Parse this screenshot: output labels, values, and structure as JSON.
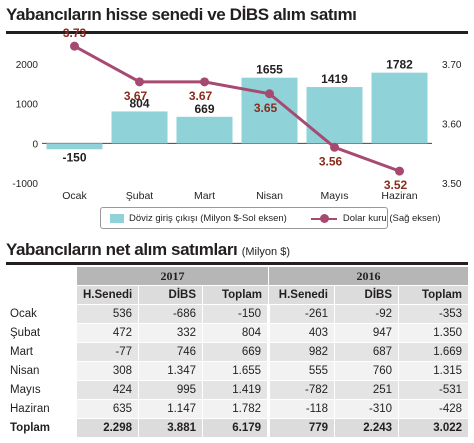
{
  "title": "Yabancıların hisse senedi ve DİBS alım satımı",
  "chart_data": {
    "type": "bar+line",
    "categories": [
      "Ocak",
      "Şubat",
      "Mart",
      "Nisan",
      "Mayıs",
      "Haziran"
    ],
    "series": [
      {
        "name": "Döviz giriş çıkışı (Milyon $-Sol eksen)",
        "type": "bar",
        "axis": "left",
        "values": [
          -150,
          804,
          669,
          1655,
          1419,
          1782
        ],
        "labels": [
          "-150",
          "804",
          "669",
          "1655",
          "1419",
          "1782"
        ],
        "color": "#8fd3d9"
      },
      {
        "name": "Dolar kuru (Sağ eksen)",
        "type": "line",
        "axis": "right",
        "values": [
          3.73,
          3.67,
          3.67,
          3.65,
          3.56,
          3.52
        ],
        "labels": [
          "3.73",
          "3.67",
          "3.67",
          "3.65",
          "3.56",
          "3.52"
        ],
        "color": "#a74a72"
      }
    ],
    "y_left": {
      "min": -1000,
      "max": 2000,
      "ticks": [
        2000,
        1000,
        0,
        -1000
      ],
      "tick_labels": [
        "2000",
        "1000",
        "0",
        "-1000"
      ]
    },
    "y_right": {
      "min": 3.5,
      "max": 3.7,
      "ticks": [
        3.7,
        3.6,
        3.5
      ],
      "tick_labels": [
        "3.70",
        "3.60",
        "3.50"
      ]
    },
    "grid": false,
    "legend": "bottom"
  },
  "table": {
    "title": "Yabancıların net alım satımları",
    "unit": "(Milyon $)",
    "years": [
      "2017",
      "2016"
    ],
    "columns": [
      "H.Senedi",
      "DİBS",
      "Toplam",
      "H.Senedi",
      "DİBS",
      "Toplam"
    ],
    "rows": [
      {
        "label": "Ocak",
        "values": [
          "536",
          "-686",
          "-150",
          "-261",
          "-92",
          "-353"
        ]
      },
      {
        "label": "Şubat",
        "values": [
          "472",
          "332",
          "804",
          "403",
          "947",
          "1.350"
        ]
      },
      {
        "label": "Mart",
        "values": [
          "-77",
          "746",
          "669",
          "982",
          "687",
          "1.669"
        ]
      },
      {
        "label": "Nisan",
        "values": [
          "308",
          "1.347",
          "1.655",
          "555",
          "760",
          "1.315"
        ]
      },
      {
        "label": "Mayıs",
        "values": [
          "424",
          "995",
          "1.419",
          "-782",
          "251",
          "-531"
        ]
      },
      {
        "label": "Haziran",
        "values": [
          "635",
          "1.147",
          "1.782",
          "-118",
          "-310",
          "-428"
        ]
      },
      {
        "label": "Toplam",
        "values": [
          "2.298",
          "3.881",
          "6.179",
          "779",
          "2.243",
          "3.022"
        ]
      }
    ]
  }
}
